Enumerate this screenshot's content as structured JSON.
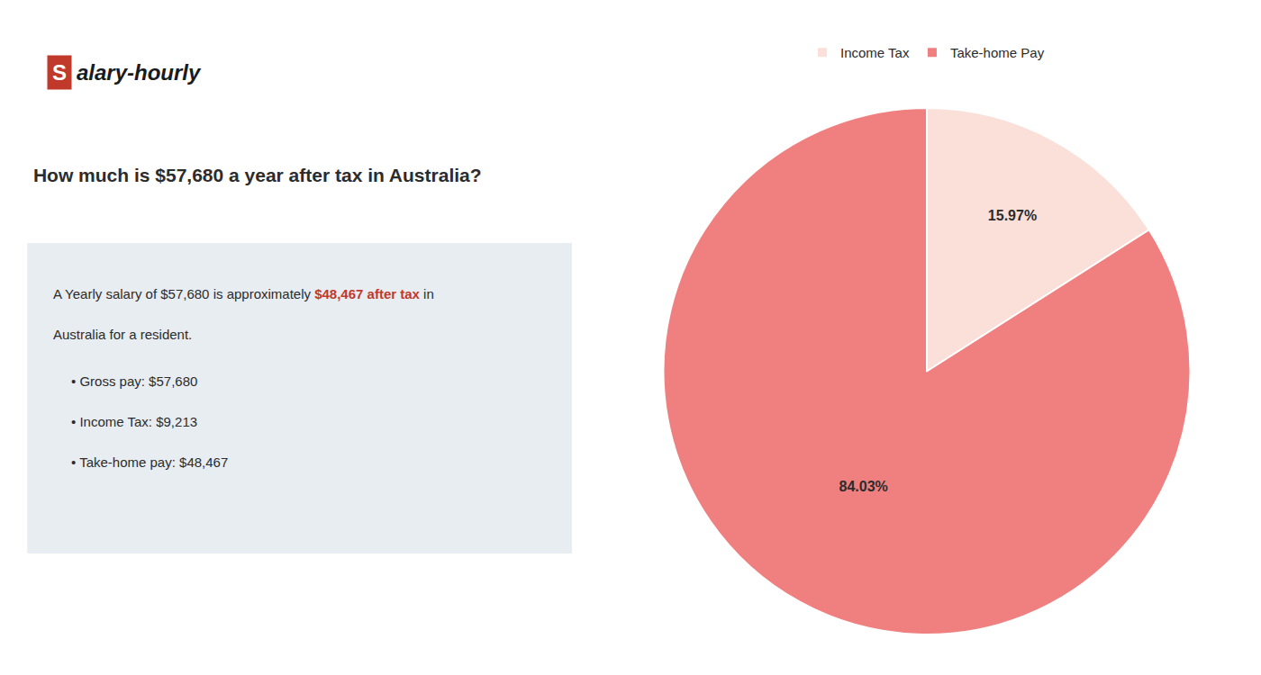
{
  "chart_data": {
    "type": "pie",
    "title": "How much is $57,680 a year after tax in Australia?",
    "categories": [
      "Income Tax",
      "Take-home Pay"
    ],
    "values": [
      15.97,
      84.03
    ],
    "value_labels": [
      "15.97%",
      "84.03%"
    ],
    "colors": [
      "#fae0d8",
      "#f08080"
    ],
    "data_labels": true,
    "legend": "top",
    "annotations": [
      {
        "text": "S",
        "color": "#c0392b"
      },
      {
        "text": "alary-hourly"
      },
      {
        "text": "A Yearly salary of $57,680 is approximately "
      },
      {
        "text": "$48,467 after tax",
        "color": "#c0392b"
      },
      {
        "text": " in"
      },
      {
        "text": "Australia for a resident."
      },
      {
        "text": "• Gross pay: $57,680"
      },
      {
        "text": "• Income Tax: $9,213"
      },
      {
        "text": "• Take-home pay: $48,467"
      }
    ]
  }
}
